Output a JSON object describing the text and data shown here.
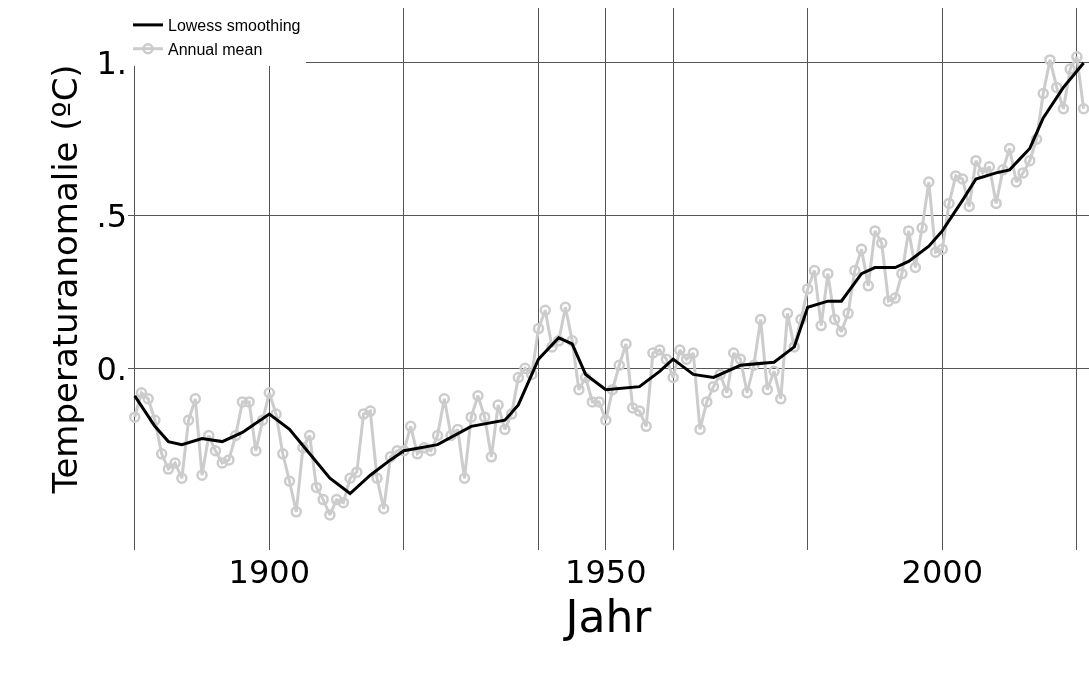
{
  "chart_data": {
    "type": "line",
    "xlabel": "Jahr",
    "ylabel": "Temperaturanomalie (ºC)",
    "xlim": [
      1879,
      2021.8
    ],
    "ylim": [
      -0.595,
      1.18
    ],
    "xticks": [
      {
        "value": 1880,
        "label": null
      },
      1900,
      {
        "value": 1920,
        "label": null
      },
      {
        "value": 1940,
        "label": null
      },
      1950,
      {
        "value": 1960,
        "label": null
      },
      {
        "value": 1980,
        "label": null
      },
      2000,
      {
        "value": 2020,
        "label": null
      }
    ],
    "yticks": [
      {
        "value": 0,
        "label": "0."
      },
      {
        "value": 0.5,
        "label": ".5"
      },
      {
        "value": 1,
        "label": "1."
      }
    ],
    "grid": true,
    "legend": "top left",
    "series": [
      {
        "name": "Annual mean",
        "color": "#cccccc",
        "marker": "circle",
        "x": [
          1880,
          1881,
          1882,
          1883,
          1884,
          1885,
          1886,
          1887,
          1888,
          1889,
          1890,
          1891,
          1892,
          1893,
          1894,
          1895,
          1896,
          1897,
          1898,
          1899,
          1900,
          1901,
          1902,
          1903,
          1904,
          1905,
          1906,
          1907,
          1908,
          1909,
          1910,
          1911,
          1912,
          1913,
          1914,
          1915,
          1916,
          1917,
          1918,
          1919,
          1920,
          1921,
          1922,
          1923,
          1924,
          1925,
          1926,
          1927,
          1928,
          1929,
          1930,
          1931,
          1932,
          1933,
          1934,
          1935,
          1936,
          1937,
          1938,
          1939,
          1940,
          1941,
          1942,
          1943,
          1944,
          1945,
          1946,
          1947,
          1948,
          1949,
          1950,
          1951,
          1952,
          1953,
          1954,
          1955,
          1956,
          1957,
          1958,
          1959,
          1960,
          1961,
          1962,
          1963,
          1964,
          1965,
          1966,
          1967,
          1968,
          1969,
          1970,
          1971,
          1972,
          1973,
          1974,
          1975,
          1976,
          1977,
          1978,
          1979,
          1980,
          1981,
          1982,
          1983,
          1984,
          1985,
          1986,
          1987,
          1988,
          1989,
          1990,
          1991,
          1992,
          1993,
          1994,
          1995,
          1996,
          1997,
          1998,
          1999,
          2000,
          2001,
          2002,
          2003,
          2004,
          2005,
          2006,
          2007,
          2008,
          2009,
          2010,
          2011,
          2012,
          2013,
          2014,
          2015,
          2016,
          2017,
          2018,
          2019,
          2020,
          2021
        ],
        "values": [
          -0.16,
          -0.08,
          -0.1,
          -0.17,
          -0.28,
          -0.33,
          -0.31,
          -0.36,
          -0.17,
          -0.1,
          -0.35,
          -0.22,
          -0.27,
          -0.31,
          -0.3,
          -0.22,
          -0.11,
          -0.11,
          -0.27,
          -0.17,
          -0.08,
          -0.15,
          -0.28,
          -0.37,
          -0.47,
          -0.26,
          -0.22,
          -0.39,
          -0.43,
          -0.48,
          -0.43,
          -0.44,
          -0.36,
          -0.34,
          -0.15,
          -0.14,
          -0.36,
          -0.46,
          -0.29,
          -0.27,
          -0.27,
          -0.19,
          -0.28,
          -0.26,
          -0.27,
          -0.22,
          -0.1,
          -0.22,
          -0.2,
          -0.36,
          -0.16,
          -0.09,
          -0.16,
          -0.29,
          -0.12,
          -0.2,
          -0.15,
          -0.03,
          0.0,
          -0.02,
          0.13,
          0.19,
          0.07,
          0.09,
          0.2,
          0.09,
          -0.07,
          -0.03,
          -0.11,
          -0.11,
          -0.17,
          -0.07,
          0.01,
          0.08,
          -0.13,
          -0.14,
          -0.19,
          0.05,
          0.06,
          0.03,
          -0.03,
          0.06,
          0.03,
          0.05,
          -0.2,
          -0.11,
          -0.06,
          -0.02,
          -0.08,
          0.05,
          0.03,
          -0.08,
          0.01,
          0.16,
          -0.07,
          -0.01,
          -0.1,
          0.18,
          0.07,
          0.16,
          0.26,
          0.32,
          0.14,
          0.31,
          0.16,
          0.12,
          0.18,
          0.32,
          0.39,
          0.27,
          0.45,
          0.41,
          0.22,
          0.23,
          0.31,
          0.45,
          0.33,
          0.46,
          0.61,
          0.38,
          0.39,
          0.54,
          0.63,
          0.62,
          0.53,
          0.68,
          0.64,
          0.66,
          0.54,
          0.65,
          0.72,
          0.61,
          0.64,
          0.68,
          0.75,
          0.9,
          1.01,
          0.92,
          0.85,
          0.98,
          1.02,
          0.85
        ]
      },
      {
        "name": "Lowess smoothing",
        "color": "#000000",
        "marker": "none",
        "x": [
          1880,
          1883,
          1885,
          1887,
          1890,
          1893,
          1896,
          1900,
          1903,
          1906,
          1909,
          1912,
          1915,
          1918,
          1920,
          1925,
          1930,
          1935,
          1937,
          1940,
          1943,
          1945,
          1947,
          1950,
          1955,
          1958,
          1960,
          1963,
          1966,
          1970,
          1975,
          1978,
          1980,
          1983,
          1985,
          1988,
          1990,
          1993,
          1995,
          1998,
          2000,
          2003,
          2005,
          2008,
          2010,
          2013,
          2015,
          2018,
          2021
        ],
        "values": [
          -0.09,
          -0.19,
          -0.24,
          -0.25,
          -0.23,
          -0.24,
          -0.21,
          -0.15,
          -0.2,
          -0.28,
          -0.36,
          -0.41,
          -0.35,
          -0.3,
          -0.27,
          -0.25,
          -0.19,
          -0.17,
          -0.12,
          0.03,
          0.1,
          0.08,
          -0.02,
          -0.07,
          -0.06,
          -0.01,
          0.03,
          -0.02,
          -0.03,
          0.01,
          0.02,
          0.07,
          0.2,
          0.22,
          0.22,
          0.31,
          0.33,
          0.33,
          0.35,
          0.4,
          0.45,
          0.55,
          0.62,
          0.64,
          0.65,
          0.72,
          0.82,
          0.92,
          1.0
        ]
      }
    ]
  }
}
